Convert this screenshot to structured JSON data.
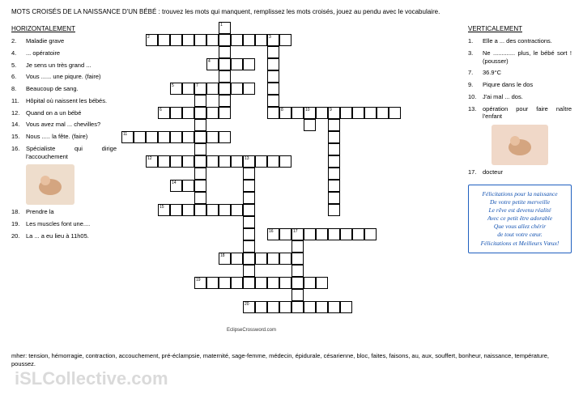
{
  "title": "MOTS CROISÉS DE LA NAISSANCE D'UN BÉBÉ : trouvez les mots qui manquent, remplissez les mots croisés, jouez au pendu avec le vocabulaire.",
  "horiz_heading": "HORIZONTALEMENT",
  "vert_heading": "VERTICALEMENT",
  "horiz": [
    {
      "n": "2.",
      "t": "Maladie grave"
    },
    {
      "n": "4.",
      "t": "... opératoire"
    },
    {
      "n": "5.",
      "t": "Je sens un très grand ..."
    },
    {
      "n": "6.",
      "t": "Vous ...... une piqure. (faire)"
    },
    {
      "n": "8.",
      "t": "Beaucoup de sang."
    },
    {
      "n": "11.",
      "t": "Hôpital où naissent les bébés."
    },
    {
      "n": "12.",
      "t": "Quand on a un bébé"
    },
    {
      "n": "14.",
      "t": "Vous avez mal ... chevilles?"
    },
    {
      "n": "15.",
      "t": "Nous ..... la fête. (faire)"
    },
    {
      "n": "16.",
      "t": "Spécialiste qui dirige l'accouchement"
    },
    {
      "n": "18.",
      "t": "Prendre la"
    },
    {
      "n": "19.",
      "t": "Les muscles font une...."
    },
    {
      "n": "20.",
      "t": "La ... a eu lieu à 11h05."
    }
  ],
  "vert": [
    {
      "n": "1.",
      "t": "Elle a ... des contractions."
    },
    {
      "n": "3.",
      "t": "Ne ............. plus, le bébé sort ! (pousser)"
    },
    {
      "n": "7.",
      "t": "36.9°C"
    },
    {
      "n": "9.",
      "t": "Piqure dans le dos"
    },
    {
      "n": "10.",
      "t": "J'ai mal ... dos."
    },
    {
      "n": "13.",
      "t": "opération pour faire naître l'enfant"
    },
    {
      "n": "17.",
      "t": "docteur"
    }
  ],
  "congrats": [
    "Félicitations pour la naissance",
    "De votre petite merveille",
    "Le rêve est devenu réalité",
    "Avec ce petit être adorable",
    "Que vous allez chérir",
    "de tout votre cœur.",
    "Félicitations et Meilleurs Vœux!"
  ],
  "vocab_label": "mher:",
  "vocab": "tension, hémorragie, contraction, accouchement, pré-éclampsie, maternité, sage-femme, médecin, épidurale, césarienne, bloc, faites, faisons, au, aux, souffert, bonheur, naissance, température, poussez.",
  "watermark": "iSLCollective.com",
  "grid": {
    "cell_size": 15,
    "words": [
      {
        "row": 0,
        "col": 8,
        "len": 7,
        "dir": "v",
        "num": "1"
      },
      {
        "row": 1,
        "col": 2,
        "len": 12,
        "dir": "h",
        "num": "2"
      },
      {
        "row": 1,
        "col": 12,
        "len": 7,
        "dir": "v",
        "num": "3"
      },
      {
        "row": 3,
        "col": 7,
        "len": 4,
        "dir": "h",
        "num": "4"
      },
      {
        "row": 5,
        "col": 4,
        "len": 7,
        "dir": "h",
        "num": "5"
      },
      {
        "row": 7,
        "col": 3,
        "len": 6,
        "dir": "h",
        "num": "6"
      },
      {
        "row": 5,
        "col": 6,
        "len": 11,
        "dir": "v",
        "num": "7"
      },
      {
        "row": 7,
        "col": 13,
        "len": 10,
        "dir": "h",
        "num": "8"
      },
      {
        "row": 7,
        "col": 17,
        "len": 9,
        "dir": "v",
        "num": "9"
      },
      {
        "row": 7,
        "col": 15,
        "len": 2,
        "dir": "v",
        "num": "10"
      },
      {
        "row": 9,
        "col": 0,
        "len": 9,
        "dir": "h",
        "num": "11"
      },
      {
        "row": 11,
        "col": 2,
        "len": 12,
        "dir": "h",
        "num": "12"
      },
      {
        "row": 11,
        "col": 10,
        "len": 10,
        "dir": "v",
        "num": "13"
      },
      {
        "row": 13,
        "col": 4,
        "len": 3,
        "dir": "h",
        "num": "14"
      },
      {
        "row": 15,
        "col": 3,
        "len": 7,
        "dir": "h",
        "num": "15"
      },
      {
        "row": 17,
        "col": 12,
        "len": 9,
        "dir": "h",
        "num": "16"
      },
      {
        "row": 17,
        "col": 14,
        "len": 7,
        "dir": "v",
        "num": "17"
      },
      {
        "row": 19,
        "col": 8,
        "len": 7,
        "dir": "h",
        "num": "18"
      },
      {
        "row": 21,
        "col": 6,
        "len": 11,
        "dir": "h",
        "num": "19"
      },
      {
        "row": 23,
        "col": 10,
        "len": 9,
        "dir": "h",
        "num": "20"
      }
    ]
  }
}
